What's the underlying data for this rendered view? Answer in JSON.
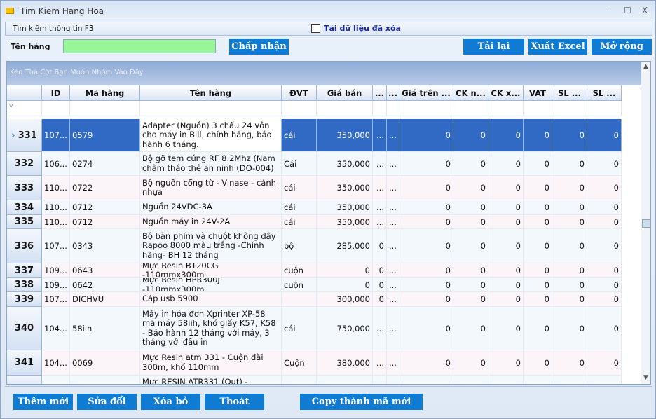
{
  "window": {
    "title": "Tim Kiem Hang Hoa",
    "minimize": "–",
    "maximize": "☐",
    "close": "X"
  },
  "searchbar": {
    "label": "Tìm kiếm thông tin F3",
    "deleted_checkbox_label": "Tải dữ liệu đã xóa",
    "deleted_checked": false
  },
  "toolbar": {
    "name_label": "Tên hàng",
    "name_value": "",
    "accept": "Chấp nhận",
    "reload": "Tải lại",
    "export_excel": "Xuất Excel",
    "expand": "Mở rộng"
  },
  "grid": {
    "group_hint": "Kéo Thả Cột Bạn Muốn Nhóm Vào Đây",
    "columns": [
      "ID",
      "Mã hàng",
      "Tên hàng",
      "ĐVT",
      "Giá bán",
      "...",
      "...",
      "Giá trên ...",
      "CK n...",
      "CK x...",
      "VAT",
      "SL ...",
      "SL ..."
    ],
    "selected_row": "331",
    "rows": [
      {
        "no": "331",
        "id": "107...",
        "code": "0579",
        "name": "Adapter (Nguồn) 3 chấu 24 vôn cho máy in Bill, chính hãng, bảo hành 6 tháng.",
        "unit": "cái",
        "price": "350,000",
        "c1": "...",
        "c2": "...",
        "above": "0",
        "ckn": "0",
        "ckx": "0",
        "vat": "0",
        "sl1": "0",
        "sl2": "0"
      },
      {
        "no": "332",
        "id": "106...",
        "code": "0274",
        "name": "Bộ gỡ tem cứng RF 8.2Mhz (Nam châm tháo thẻ an ninh (DO-004)",
        "unit": "Cái",
        "price": "350,000",
        "c1": "...",
        "c2": "...",
        "above": "0",
        "ckn": "0",
        "ckx": "0",
        "vat": "0",
        "sl1": "0",
        "sl2": "0"
      },
      {
        "no": "333",
        "id": "110...",
        "code": "0722",
        "name": "Bộ nguồn cổng từ - Vinase - cánh nhựa",
        "unit": "cái",
        "price": "350,000",
        "c1": "...",
        "c2": "...",
        "above": "0",
        "ckn": "0",
        "ckx": "0",
        "vat": "0",
        "sl1": "0",
        "sl2": "0"
      },
      {
        "no": "334",
        "id": "110...",
        "code": "0712",
        "name": "Nguồn 24VDC-3A",
        "unit": "cái",
        "price": "350,000",
        "c1": "...",
        "c2": "...",
        "above": "0",
        "ckn": "0",
        "ckx": "0",
        "vat": "0",
        "sl1": "0",
        "sl2": "0"
      },
      {
        "no": "335",
        "id": "110...",
        "code": "0712",
        "name": "Nguồn máy in 24V-2A",
        "unit": "cái",
        "price": "350,000",
        "c1": "...",
        "c2": "...",
        "above": "0",
        "ckn": "0",
        "ckx": "0",
        "vat": "0",
        "sl1": "0",
        "sl2": "0"
      },
      {
        "no": "336",
        "id": "107...",
        "code": "0343",
        "name": "Bộ bàn phím và chuột không dây Rapoo 8000 màu trắng -Chính hãng- BH 12 tháng",
        "unit": "bộ",
        "price": "285,000",
        "c1": "0",
        "c2": "...",
        "above": "0",
        "ckn": "0",
        "ckx": "0",
        "vat": "0",
        "sl1": "0",
        "sl2": "0"
      },
      {
        "no": "337",
        "id": "109...",
        "code": "0643",
        "name": "Mực Resin B120CG -110mmx300m",
        "unit": "cuộn",
        "price": "0",
        "c1": "0",
        "c2": "...",
        "above": "0",
        "ckn": "0",
        "ckx": "0",
        "vat": "0",
        "sl1": "0",
        "sl2": "0"
      },
      {
        "no": "338",
        "id": "109...",
        "code": "0642",
        "name": "Mực Resin HPR300J -110mmx300m",
        "unit": "cuộn",
        "price": "0",
        "c1": "0",
        "c2": "...",
        "above": "0",
        "ckn": "0",
        "ckx": "0",
        "vat": "0",
        "sl1": "0",
        "sl2": "0"
      },
      {
        "no": "339",
        "id": "107...",
        "code": "DICHVU",
        "name": "Cáp usb 5900",
        "unit": "",
        "price": "300,000",
        "c1": "0",
        "c2": "...",
        "above": "0",
        "ckn": "0",
        "ckx": "0",
        "vat": "0",
        "sl1": "0",
        "sl2": "0"
      },
      {
        "no": "340",
        "id": "104...",
        "code": "58iih",
        "name": "Máy in hóa đơn Xprinter XP-58 mã máy 58iih, khổ giấy K57, K58 - Bảo hành 12 tháng với máy, 3 tháng với đầu in",
        "unit": "cái",
        "price": "750,000",
        "c1": "...",
        "c2": "...",
        "above": "0",
        "ckn": "0",
        "ckx": "0",
        "vat": "0",
        "sl1": "0",
        "sl2": "0"
      },
      {
        "no": "341",
        "id": "104...",
        "code": "0069",
        "name": "Mực Resin atm 331 - Cuộn dài 300m, khổ 110mm",
        "unit": "Cuộn",
        "price": "380,000",
        "c1": "...",
        "c2": "...",
        "above": "0",
        "ckn": "0",
        "ckx": "0",
        "vat": "0",
        "sl1": "0",
        "sl2": "0"
      },
      {
        "no": "",
        "id": "",
        "code": "",
        "name": "Mực RESIN ATR331 (Out) -",
        "unit": "",
        "price": "",
        "c1": "",
        "c2": "",
        "above": "",
        "ckn": "",
        "ckx": "",
        "vat": "",
        "sl1": "",
        "sl2": ""
      }
    ]
  },
  "bottom": {
    "add": "Thêm mới",
    "edit": "Sửa đổi",
    "delete": "Xóa bỏ",
    "exit": "Thoát",
    "copy": "Copy thành mã mới"
  },
  "colors": {
    "button": "#0f7bd3",
    "selected_row": "#316ac5",
    "name_input": "#98f598"
  }
}
